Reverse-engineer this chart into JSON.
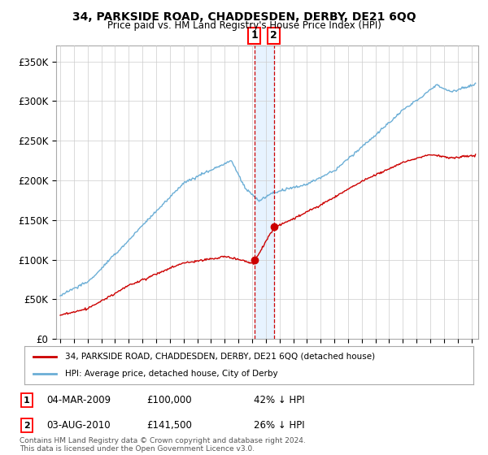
{
  "title": "34, PARKSIDE ROAD, CHADDESDEN, DERBY, DE21 6QQ",
  "subtitle": "Price paid vs. HM Land Registry's House Price Index (HPI)",
  "ylabel_ticks": [
    "£0",
    "£50K",
    "£100K",
    "£150K",
    "£200K",
    "£250K",
    "£300K",
    "£350K"
  ],
  "ytick_vals": [
    0,
    50000,
    100000,
    150000,
    200000,
    250000,
    300000,
    350000
  ],
  "ylim": [
    0,
    370000
  ],
  "xlim_start": 1994.7,
  "xlim_end": 2025.5,
  "transaction1_date": 2009.17,
  "transaction1_price": 100000,
  "transaction2_date": 2010.58,
  "transaction2_price": 141500,
  "legend_line1": "34, PARKSIDE ROAD, CHADDESDEN, DERBY, DE21 6QQ (detached house)",
  "legend_line2": "HPI: Average price, detached house, City of Derby",
  "transaction1_num": "1",
  "transaction1_date_str": "04-MAR-2009",
  "transaction1_price_str": "£100,000",
  "transaction1_pct": "42% ↓ HPI",
  "transaction2_num": "2",
  "transaction2_date_str": "03-AUG-2010",
  "transaction2_price_str": "£141,500",
  "transaction2_pct": "26% ↓ HPI",
  "footnote": "Contains HM Land Registry data © Crown copyright and database right 2024.\nThis data is licensed under the Open Government Licence v3.0.",
  "hpi_color": "#6baed6",
  "price_color": "#cc0000",
  "vline_color": "#cc0000",
  "grid_color": "#cccccc",
  "background_color": "#ffffff",
  "shade_color": "#ddeeff"
}
